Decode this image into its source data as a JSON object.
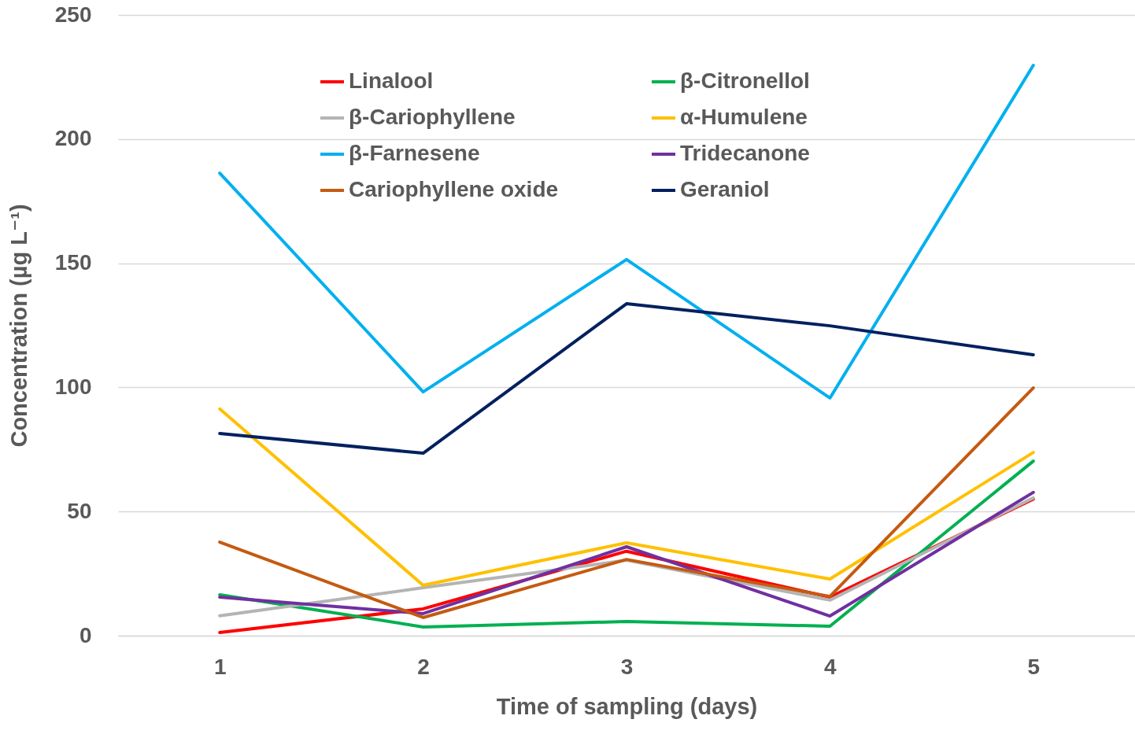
{
  "chart_data": {
    "type": "line",
    "xlabel": "Time of sampling (days)",
    "ylabel": "Concentration (µg L⁻¹)",
    "categories": [
      "1",
      "2",
      "3",
      "4",
      "5"
    ],
    "ylim": [
      0,
      250
    ],
    "yticks": [
      0,
      50,
      100,
      150,
      200,
      250
    ],
    "grid": "y",
    "legend": "top",
    "marker": "none",
    "line_style": "solid",
    "series": [
      {
        "name": "Linalool",
        "color": "#ff0000",
        "values": [
          1.3,
          10.8,
          34,
          15.5,
          55
        ]
      },
      {
        "name": "β-Citronellol",
        "color": "#00b050",
        "values": [
          16.5,
          3.5,
          5.7,
          3.8,
          70.3
        ]
      },
      {
        "name": "β-Cariophyllene",
        "color": "#b4b4b4",
        "values": [
          8,
          19.3,
          30.4,
          14.3,
          55.5
        ]
      },
      {
        "name": "α-Humulene",
        "color": "#ffc000",
        "values": [
          91.3,
          20.3,
          37.4,
          22.8,
          73.8
        ]
      },
      {
        "name": "β-Farnesene",
        "color": "#00b0f0",
        "values": [
          186.3,
          98.2,
          151.5,
          95.7,
          229.7
        ]
      },
      {
        "name": "Tridecanone",
        "color": "#7030a0",
        "values": [
          15.5,
          8.9,
          35.8,
          7.9,
          57.7
        ]
      },
      {
        "name": "Cariophyllene oxide",
        "color": "#c55a11",
        "values": [
          37.7,
          7.3,
          30.7,
          15.8,
          99.8
        ]
      },
      {
        "name": "Geraniol",
        "color": "#002060",
        "values": [
          81.4,
          73.5,
          133.7,
          124.8,
          113.1
        ]
      }
    ]
  }
}
